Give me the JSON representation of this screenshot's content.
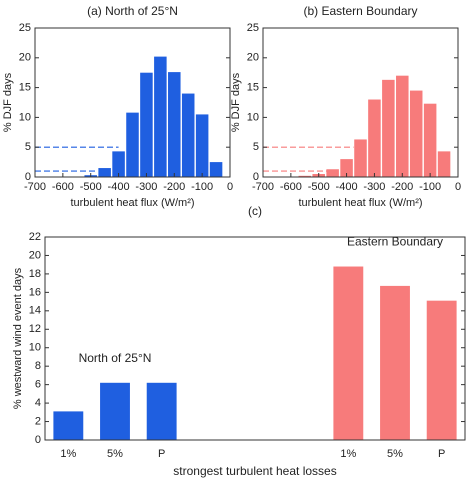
{
  "chart_data": [
    {
      "type": "histogram",
      "title": "(a) North of 25°N",
      "xlabel": "turbulent heat flux (W/m²)",
      "ylabel": "% DJF days",
      "bins": [
        -525,
        -475,
        -425,
        -375,
        -325,
        -275,
        -225,
        -175,
        -125,
        -75,
        -25
      ],
      "values": [
        0.3,
        1.5,
        4.3,
        10.8,
        17.5,
        20.2,
        17.6,
        14.0,
        10.5,
        2.5
      ],
      "color": "#1f5fe0",
      "xlim": [
        -700,
        0
      ],
      "xticks": [
        -700,
        -600,
        -500,
        -400,
        -300,
        -200,
        -100,
        0
      ],
      "ylim": [
        0,
        25
      ],
      "yticks": [
        0,
        5,
        10,
        15,
        20,
        25
      ],
      "hlines": [
        {
          "y": 5,
          "x_end": -400
        },
        {
          "y": 1,
          "x_end": -475
        }
      ]
    },
    {
      "type": "histogram",
      "title": "(b) Eastern Boundary",
      "xlabel": "turbulent heat flux (W/m²)",
      "ylabel": "% DJF days",
      "bins": [
        -575,
        -525,
        -475,
        -425,
        -375,
        -325,
        -275,
        -225,
        -175,
        -125,
        -75,
        -25
      ],
      "values": [
        0.2,
        0.5,
        1.3,
        3.0,
        6.3,
        13.0,
        16.3,
        17.0,
        14.5,
        12.3,
        4.3
      ],
      "color": "#f77b7b",
      "xlim": [
        -700,
        0
      ],
      "xticks": [
        -700,
        -600,
        -500,
        -400,
        -300,
        -200,
        -100,
        0
      ],
      "ylim": [
        0,
        25
      ],
      "yticks": [
        0,
        5,
        10,
        15,
        20,
        25
      ],
      "hlines": [
        {
          "y": 5,
          "x_end": -375
        },
        {
          "y": 1,
          "x_end": -450
        }
      ]
    },
    {
      "type": "bar",
      "title": "(c)",
      "xlabel": "strongest turbulent heat losses",
      "ylabel": "% westward wind event days",
      "categories": [
        "1%",
        "5%",
        "P",
        null,
        null,
        null,
        "1%",
        "5%",
        "P"
      ],
      "series": [
        {
          "name": "North of 25°N",
          "color": "#1f5fe0",
          "values": [
            3.1,
            6.2,
            6.2,
            null,
            null,
            null,
            null,
            null,
            null
          ]
        },
        {
          "name": "Eastern Boundary",
          "color": "#f77b7b",
          "values": [
            null,
            null,
            null,
            null,
            null,
            null,
            18.8,
            16.7,
            15.1
          ]
        }
      ],
      "ylim": [
        0,
        22
      ],
      "yticks": [
        0,
        2,
        4,
        6,
        8,
        10,
        12,
        14,
        16,
        18,
        20,
        22
      ]
    }
  ]
}
